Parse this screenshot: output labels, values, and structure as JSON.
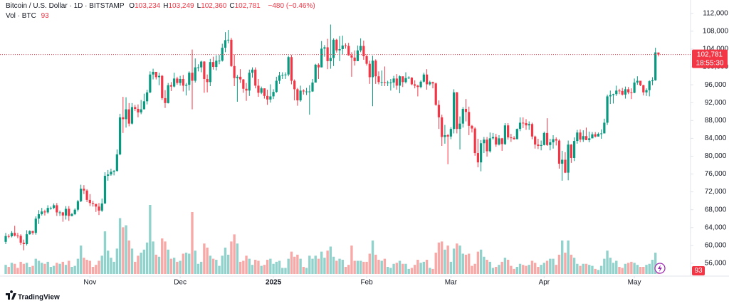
{
  "header": {
    "symbol": "Bitcoin / U.S. Dollar · 1D · BITSTAMP",
    "ohlc": [
      [
        "O",
        "103,234"
      ],
      [
        "H",
        "103,249"
      ],
      [
        "L",
        "102,360"
      ],
      [
        "C",
        "102,781"
      ]
    ],
    "change": "−480 (−0.46%)",
    "volume_label": "Vol · BTC",
    "volume_value": "93"
  },
  "footer": {
    "logo": "TradingView"
  },
  "chart_data": {
    "type": "candlestick",
    "up_color": "#089981",
    "down_color": "#f23645",
    "volume_up_color": "#92d2cc",
    "volume_down_color": "#f7a9a7",
    "xlim": [
      -1.9,
      227.2
    ],
    "ylim": [
      52000,
      115000
    ],
    "xticks": [
      {
        "value": 28,
        "label": "Nov"
      },
      {
        "value": 58,
        "label": "Dec"
      },
      {
        "value": 89,
        "label": "2025"
      },
      {
        "value": 120,
        "label": "Feb"
      },
      {
        "value": 148,
        "label": "Mar"
      },
      {
        "value": 179,
        "label": "Apr"
      },
      {
        "value": 209,
        "label": "May"
      }
    ],
    "yticks": [
      {
        "value": 56000,
        "label": "56,000"
      },
      {
        "value": 60000,
        "label": "60,000"
      },
      {
        "value": 64000,
        "label": "64,000"
      },
      {
        "value": 68000,
        "label": "68,000"
      },
      {
        "value": 72000,
        "label": "72,000"
      },
      {
        "value": 76000,
        "label": "76,000"
      },
      {
        "value": 80000,
        "label": "80,000"
      },
      {
        "value": 84000,
        "label": "84,000"
      },
      {
        "value": 88000,
        "label": "88,000"
      },
      {
        "value": 92000,
        "label": "92,000"
      },
      {
        "value": 96000,
        "label": "96,000"
      },
      {
        "value": 100000,
        "label": "100,000"
      },
      {
        "value": 104000,
        "label": "104,000"
      },
      {
        "value": 108000,
        "label": "108,000"
      },
      {
        "value": 112000,
        "label": "112,000"
      }
    ],
    "last_price": {
      "value": 102781,
      "label": "102,781"
    },
    "countdown": "18:55:30",
    "open": [
      60800,
      62100,
      62050,
      62800,
      62200,
      62150,
      60600,
      60300,
      62500,
      63200,
      62800,
      66000,
      67000,
      67600,
      67400,
      68400,
      68400,
      69000,
      67400,
      67400,
      66700,
      68200,
      66600,
      67000,
      68000,
      69900,
      72700,
      72300,
      70200,
      69500,
      69300,
      68700,
      67800,
      69400,
      75600,
      75900,
      76500,
      76700,
      80400,
      88700,
      88300,
      90500,
      87300,
      91000,
      90600,
      89800,
      90500,
      92300,
      94300,
      98300,
      98900,
      97700,
      98000,
      93000,
      91900,
      95900,
      95600,
      97400,
      96400,
      97300,
      95800,
      96000,
      98700,
      96900,
      99900,
      99900,
      101200,
      97300,
      96600,
      101100,
      100000,
      101400,
      101400,
      104300,
      106000,
      106100,
      100200,
      97500,
      97800,
      97200,
      95100,
      94700,
      98700,
      99400,
      95800,
      94200,
      95200,
      93500,
      92700,
      93400,
      94400,
      96900,
      98100,
      98200,
      98300,
      102200,
      96900,
      95000,
      92500,
      94700,
      94500,
      94500,
      94500,
      96500,
      100500,
      99900,
      104100,
      104400,
      101300,
      102000,
      106100,
      103700,
      104000,
      104800,
      104700,
      102600,
      102100,
      101300,
      103700,
      104700,
      102400,
      100700,
      97700,
      101400,
      97900,
      96600,
      96600,
      96500,
      96500,
      96500,
      97400,
      95800,
      97900,
      96600,
      97500,
      97600,
      96100,
      95800,
      95500,
      96700,
      98300,
      96100,
      96600,
      96300,
      91500,
      88700,
      84300,
      84700,
      84400,
      86100,
      94300,
      86100,
      87300,
      90600,
      89900,
      86800,
      86200,
      80700,
      78600,
      82900,
      83700,
      81100,
      84000,
      84300,
      82600,
      84000,
      82700,
      86900,
      84200,
      84100,
      83800,
      86100,
      87500,
      87400,
      86900,
      87200,
      84400,
      82600,
      82300,
      82500,
      85200,
      82500,
      83100,
      83800,
      83500,
      78300,
      79200,
      76300,
      82600,
      79600,
      83400,
      85300,
      83700,
      84500,
      83600,
      84000,
      84900,
      84400,
      85000,
      85100,
      87500,
      93400,
      93700,
      93900,
      94700,
      94600,
      93800,
      95000,
      94300,
      94200,
      96500,
      96900,
      95900,
      94300,
      94800,
      96800,
      97000,
      103234
    ],
    "high": [
      62800,
      62500,
      63200,
      64400,
      62800,
      62500,
      61300,
      63400,
      63400,
      63300,
      66500,
      67900,
      68400,
      68000,
      69000,
      68700,
      69400,
      69500,
      67800,
      67500,
      68800,
      68800,
      67300,
      68300,
      70200,
      73600,
      73500,
      72600,
      71500,
      70000,
      69300,
      69500,
      70500,
      76400,
      76900,
      77200,
      76900,
      81500,
      89500,
      93300,
      93200,
      91900,
      91900,
      91500,
      91600,
      92600,
      94000,
      94900,
      99000,
      99600,
      98800,
      98700,
      98200,
      94800,
      96400,
      96600,
      98700,
      97800,
      98000,
      98200,
      96400,
      99000,
      103900,
      101900,
      100600,
      101400,
      101300,
      98300,
      101800,
      102300,
      102600,
      102700,
      105200,
      107800,
      108300,
      106500,
      102800,
      98200,
      99500,
      97300,
      96400,
      99400,
      99900,
      99900,
      97300,
      95600,
      95200,
      94900,
      96100,
      95000,
      97800,
      98900,
      98800,
      98800,
      102500,
      102700,
      97200,
      95300,
      95800,
      95000,
      95300,
      95900,
      97300,
      100700,
      100800,
      105800,
      104900,
      106300,
      109500,
      106400,
      106300,
      106900,
      107000,
      105300,
      105400,
      103300,
      103700,
      104800,
      106400,
      105900,
      102800,
      101400,
      102500,
      101700,
      99000,
      99200,
      100100,
      96900,
      97300,
      98000,
      98400,
      98100,
      97300,
      98800,
      97900,
      97700,
      97000,
      96000,
      97000,
      98700,
      99500,
      96900,
      96700,
      96500,
      92500,
      89300,
      87000,
      85000,
      86500,
      95000,
      94400,
      88900,
      91000,
      92800,
      91100,
      87000,
      86500,
      83900,
      83600,
      84300,
      84300,
      85300,
      85200,
      85000,
      84700,
      84100,
      87400,
      87400,
      85000,
      84500,
      86200,
      88700,
      88700,
      88300,
      87800,
      87500,
      84600,
      83900,
      83500,
      85500,
      88500,
      83900,
      84700,
      84200,
      83800,
      81200,
      80900,
      83500,
      82700,
      84200,
      85900,
      86000,
      85800,
      86400,
      85500,
      85400,
      85400,
      85300,
      86000,
      88400,
      93800,
      94700,
      94000,
      95800,
      95100,
      95300,
      95600,
      95500,
      95200,
      97400,
      97900,
      96900,
      96000,
      95200,
      97000,
      97700,
      104300,
      103249
    ],
    "low": [
      60300,
      61600,
      61800,
      62000,
      61600,
      60100,
      58900,
      60000,
      62400,
      62400,
      62400,
      64800,
      66700,
      66700,
      67100,
      68000,
      68100,
      66600,
      66600,
      65300,
      65800,
      65500,
      66500,
      66800,
      67600,
      69700,
      71500,
      69700,
      68800,
      68700,
      67500,
      66800,
      67500,
      69300,
      74500,
      75600,
      75700,
      76500,
      80200,
      85200,
      86400,
      86700,
      87100,
      90100,
      88700,
      89400,
      90500,
      91600,
      94100,
      97200,
      97200,
      95900,
      92600,
      90800,
      91800,
      94600,
      95400,
      96000,
      95800,
      94500,
      93600,
      94700,
      90500,
      96500,
      99000,
      98800,
      94200,
      94300,
      95700,
      99400,
      99200,
      100600,
      101200,
      103300,
      105300,
      100000,
      95700,
      92200,
      96400,
      94200,
      92400,
      93500,
      97600,
      95200,
      93300,
      93900,
      92900,
      91500,
      92000,
      92800,
      94200,
      96200,
      97300,
      97300,
      97900,
      96100,
      92500,
      91300,
      92200,
      93800,
      93700,
      89300,
      94400,
      96500,
      97300,
      99900,
      102300,
      99500,
      99600,
      100200,
      103200,
      101300,
      102800,
      104100,
      102500,
      97800,
      100300,
      101300,
      103300,
      101600,
      100300,
      96200,
      91200,
      96200,
      96100,
      95700,
      95700,
      95700,
      94700,
      95300,
      94900,
      94100,
      95500,
      96300,
      97300,
      95900,
      95200,
      93400,
      95200,
      96500,
      94900,
      95800,
      95200,
      91300,
      86100,
      82300,
      82800,
      78200,
      83800,
      85100,
      85100,
      81500,
      86400,
      87800,
      84700,
      85300,
      80100,
      77500,
      76600,
      80700,
      79900,
      80800,
      83700,
      82100,
      82400,
      81200,
      82500,
      83700,
      83200,
      83700,
      83800,
      85600,
      86300,
      85900,
      85900,
      83800,
      81700,
      81600,
      81300,
      82400,
      82300,
      81300,
      81700,
      82400,
      77200,
      74500,
      76200,
      74600,
      78500,
      78900,
      82800,
      83100,
      83200,
      83600,
      83100,
      84000,
      84200,
      84400,
      83900,
      85100,
      87000,
      91700,
      91800,
      93500,
      93900,
      93600,
      92900,
      93900,
      92800,
      94100,
      96000,
      95700,
      93600,
      93500,
      93400,
      95900,
      96900,
      102360
    ],
    "close": [
      62100,
      62050,
      62800,
      62200,
      62150,
      60600,
      60300,
      62500,
      63200,
      62800,
      66000,
      67000,
      67600,
      67400,
      68400,
      68400,
      69000,
      67400,
      67400,
      66700,
      68200,
      66600,
      67000,
      68000,
      69900,
      72700,
      72300,
      70200,
      69500,
      69300,
      68700,
      67800,
      69400,
      75600,
      75900,
      76500,
      76700,
      80400,
      88700,
      88300,
      90500,
      87300,
      91000,
      90600,
      89800,
      90500,
      92300,
      94300,
      98300,
      98900,
      97700,
      98000,
      93000,
      91900,
      95900,
      95600,
      97400,
      96400,
      97300,
      95800,
      96000,
      98700,
      96900,
      99900,
      99900,
      101200,
      97300,
      96600,
      101100,
      100000,
      101400,
      101400,
      104300,
      106000,
      106100,
      100200,
      97500,
      97800,
      97200,
      95100,
      94700,
      98700,
      99400,
      95800,
      94200,
      95200,
      93500,
      92700,
      93400,
      94400,
      96900,
      98100,
      98200,
      98300,
      102200,
      96900,
      95000,
      92500,
      94700,
      94500,
      94500,
      94500,
      96500,
      100500,
      99900,
      104100,
      104400,
      101300,
      102000,
      106100,
      103700,
      104000,
      104800,
      104700,
      102600,
      102100,
      101300,
      103700,
      104700,
      102400,
      100700,
      97700,
      101400,
      97900,
      96600,
      96600,
      96500,
      96500,
      96500,
      97400,
      95800,
      97900,
      96600,
      97500,
      97600,
      96100,
      95800,
      95500,
      96700,
      98300,
      96100,
      96600,
      96300,
      91500,
      88700,
      84300,
      84700,
      84400,
      86100,
      94300,
      86100,
      87300,
      90600,
      89900,
      86800,
      86200,
      80700,
      78600,
      82900,
      83700,
      81100,
      84000,
      84300,
      82600,
      84000,
      82700,
      86900,
      84200,
      84100,
      83800,
      86100,
      87500,
      87400,
      86900,
      87200,
      84400,
      82600,
      82300,
      82500,
      85200,
      82500,
      83100,
      83800,
      83500,
      78300,
      79200,
      76300,
      82600,
      79600,
      83400,
      85300,
      83700,
      84500,
      83600,
      84000,
      84900,
      84400,
      85000,
      85100,
      87500,
      93400,
      93700,
      93900,
      94700,
      94600,
      93800,
      95000,
      94300,
      94200,
      96500,
      96900,
      95900,
      94300,
      94800,
      96800,
      97000,
      103261,
      102781
    ],
    "volume": [
      900,
      700,
      1100,
      1000,
      600,
      1200,
      1000,
      1100,
      700,
      800,
      1500,
      1300,
      1100,
      1000,
      1200,
      700,
      800,
      1100,
      1000,
      1200,
      900,
      1300,
      700,
      800,
      1500,
      2800,
      1600,
      1400,
      1300,
      700,
      900,
      1300,
      1800,
      4200,
      2300,
      1600,
      1200,
      2500,
      5500,
      4600,
      4800,
      3300,
      2500,
      1200,
      1800,
      2100,
      2400,
      3100,
      6800,
      3200,
      1900,
      1700,
      3500,
      3200,
      2400,
      1500,
      1600,
      1200,
      1300,
      2000,
      2100,
      2000,
      6100,
      2300,
      1000,
      1200,
      3000,
      2600,
      1800,
      1500,
      1400,
      800,
      1800,
      2600,
      1900,
      3200,
      3900,
      3000,
      1200,
      1300,
      1800,
      1500,
      900,
      1400,
      1300,
      800,
      900,
      1400,
      1500,
      1000,
      1200,
      1300,
      600,
      600,
      1500,
      2200,
      1700,
      1900,
      1500,
      700,
      600,
      1800,
      1500,
      1800,
      1500,
      2200,
      1600,
      2300,
      2700,
      1700,
      1300,
      1500,
      1400,
      700,
      900,
      2800,
      1300,
      1300,
      1300,
      1200,
      1200,
      2000,
      3300,
      1900,
      1400,
      1300,
      1500,
      700,
      600,
      1000,
      1100,
      1300,
      1000,
      1000,
      500,
      600,
      900,
      1400,
      1100,
      1200,
      1400,
      600,
      500,
      2100,
      3100,
      3200,
      2400,
      2800,
      1200,
      2500,
      3000,
      2800,
      2000,
      1900,
      2000,
      800,
      1000,
      2200,
      2400,
      1700,
      1400,
      1200,
      600,
      700,
      900,
      1200,
      1600,
      1400,
      800,
      500,
      700,
      1000,
      900,
      800,
      900,
      1300,
      1100,
      700,
      900,
      1100,
      1300,
      1500,
      1500,
      900,
      1900,
      3300,
      2100,
      3300,
      1900,
      1600,
      1000,
      800,
      1000,
      1000,
      900,
      800,
      500,
      400,
      800,
      1500,
      2300,
      1600,
      1100,
      1300,
      700,
      600,
      1000,
      1100,
      1200,
      1100,
      900,
      700,
      700,
      900,
      1000,
      1400,
      2100,
      93
    ]
  }
}
